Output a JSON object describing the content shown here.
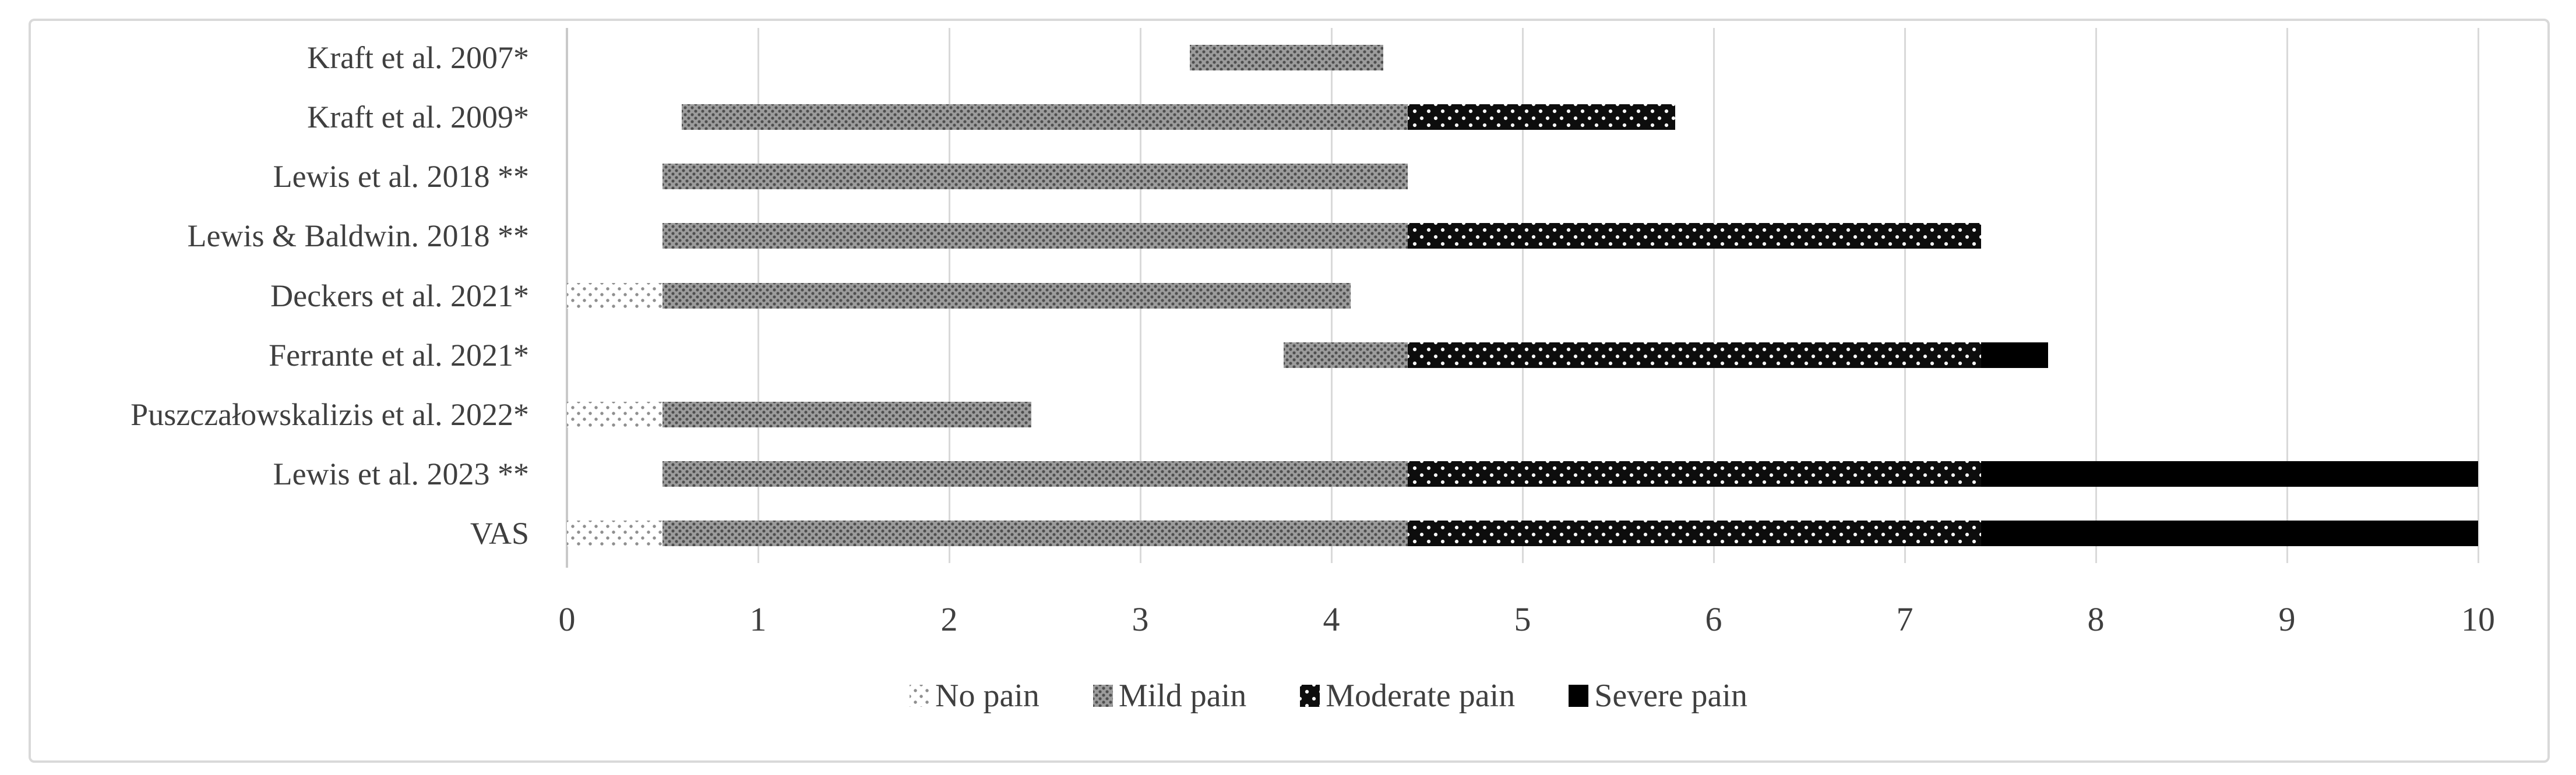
{
  "colors": {
    "background": "#ffffff",
    "border": "#d9d9d9",
    "gridline": "#d9d9d9",
    "axis_line": "#c9c9c9",
    "text": "#3f3f3f",
    "no_pain_fill": "#ffffff",
    "no_pain_dots": "#8f8f8f",
    "mild_pain_fill": "#9c9c9c",
    "mild_pain_dots": "#4e4e4e",
    "moderate_pain_fill": "#0d0d0d",
    "moderate_pain_dots": "#ffffff",
    "severe_pain_fill": "#000000"
  },
  "chart_data": {
    "type": "bar",
    "orientation": "horizontal",
    "stacked": true,
    "title": "",
    "xlabel": "",
    "ylabel": "",
    "grid": true,
    "x_axis": {
      "min": 0,
      "max": 10,
      "tick_interval": 1,
      "ticks": [
        0,
        1,
        2,
        3,
        4,
        5,
        6,
        7,
        8,
        9,
        10
      ]
    },
    "legend": {
      "position": "bottom-center",
      "items": [
        {
          "key": "none",
          "label": "No pain",
          "pattern": "white-with-gray-dots",
          "fill": "#ffffff",
          "dot_color": "#8f8f8f"
        },
        {
          "key": "mild",
          "label": "Mild pain",
          "pattern": "gray-with-dark-dots",
          "fill": "#9c9c9c",
          "dot_color": "#4e4e4e"
        },
        {
          "key": "moderate",
          "label": "Moderate pain",
          "pattern": "black-with-white-dots",
          "fill": "#0d0d0d",
          "dot_color": "#ffffff"
        },
        {
          "key": "severe",
          "label": "Severe pain",
          "pattern": "solid-black",
          "fill": "#000000",
          "dot_color": null
        }
      ]
    },
    "categories": [
      "Kraft et al. 2007*",
      "Kraft et al. 2009*",
      "Lewis et al. 2018 **",
      "Lewis & Baldwin. 2018 **",
      "Deckers et al. 2021*",
      "Ferrante et al. 2021*",
      "Puszczałowskalizis et al. 2022*",
      "Lewis et al. 2023 **",
      "VAS"
    ],
    "rows": [
      {
        "label": "Kraft et al. 2007*",
        "segments": [
          {
            "series": "Mild pain",
            "key": "mild",
            "start": 3.26,
            "end": 4.27
          }
        ]
      },
      {
        "label": "Kraft et al. 2009*",
        "segments": [
          {
            "series": "Mild pain",
            "key": "mild",
            "start": 0.6,
            "end": 4.4
          },
          {
            "series": "Moderate pain",
            "key": "moderate",
            "start": 4.4,
            "end": 5.8
          }
        ]
      },
      {
        "label": "Lewis et al. 2018 **",
        "segments": [
          {
            "series": "Mild pain",
            "key": "mild",
            "start": 0.5,
            "end": 4.4
          }
        ]
      },
      {
        "label": "Lewis & Baldwin. 2018 **",
        "segments": [
          {
            "series": "Mild pain",
            "key": "mild",
            "start": 0.5,
            "end": 4.4
          },
          {
            "series": "Moderate pain",
            "key": "moderate",
            "start": 4.4,
            "end": 7.4
          }
        ]
      },
      {
        "label": "Deckers et al. 2021*",
        "segments": [
          {
            "series": "No pain",
            "key": "none",
            "start": 0,
            "end": 0.5
          },
          {
            "series": "Mild pain",
            "key": "mild",
            "start": 0.5,
            "end": 4.1
          }
        ]
      },
      {
        "label": "Ferrante et al. 2021*",
        "segments": [
          {
            "series": "Mild pain",
            "key": "mild",
            "start": 3.75,
            "end": 4.4
          },
          {
            "series": "Moderate pain",
            "key": "moderate",
            "start": 4.4,
            "end": 7.4
          },
          {
            "series": "Severe pain",
            "key": "severe",
            "start": 7.4,
            "end": 7.75
          }
        ]
      },
      {
        "label": "Puszczałowskalizis et al. 2022*",
        "segments": [
          {
            "series": "No pain",
            "key": "none",
            "start": 0,
            "end": 0.5
          },
          {
            "series": "Mild pain",
            "key": "mild",
            "start": 0.5,
            "end": 2.43
          }
        ]
      },
      {
        "label": "Lewis et al. 2023 **",
        "segments": [
          {
            "series": "Mild pain",
            "key": "mild",
            "start": 0.5,
            "end": 4.4
          },
          {
            "series": "Moderate pain",
            "key": "moderate",
            "start": 4.4,
            "end": 7.4
          },
          {
            "series": "Severe pain",
            "key": "severe",
            "start": 7.4,
            "end": 10
          }
        ]
      },
      {
        "label": "VAS",
        "segments": [
          {
            "series": "No pain",
            "key": "none",
            "start": 0,
            "end": 0.5
          },
          {
            "series": "Mild pain",
            "key": "mild",
            "start": 0.5,
            "end": 4.4
          },
          {
            "series": "Moderate pain",
            "key": "moderate",
            "start": 4.4,
            "end": 7.4
          },
          {
            "series": "Severe pain",
            "key": "severe",
            "start": 7.4,
            "end": 10
          }
        ]
      }
    ]
  }
}
